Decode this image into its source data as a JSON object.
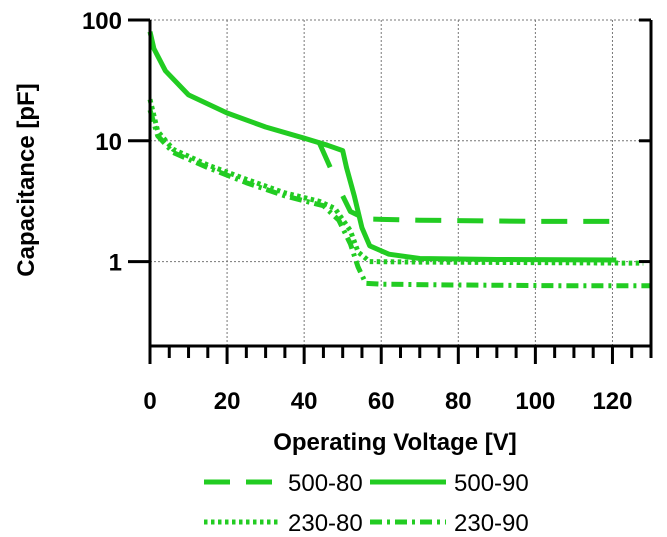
{
  "chart_data": {
    "type": "line",
    "title": "",
    "xlabel": "Operating Voltage [V]",
    "ylabel": "Capacitance [pF]",
    "xlim": [
      0,
      130
    ],
    "ylim": [
      0.2,
      100
    ],
    "yscale": "log",
    "grid": true,
    "x_ticks": [
      0,
      20,
      40,
      60,
      80,
      100,
      120
    ],
    "x_tick_labels": [
      "0",
      "20",
      "40",
      "60",
      "80",
      "100",
      "120"
    ],
    "y_ticks": [
      1,
      10,
      100
    ],
    "y_tick_labels": [
      "1",
      "10",
      "100"
    ],
    "legend_position": "bottom",
    "line_color": "#22cc22",
    "series": [
      {
        "name": "500-80",
        "style": "dashed",
        "segments": [
          [
            [
              44,
              9.5
            ],
            [
              47,
              5.8
            ]
          ],
          [
            [
              50,
              3.5
            ],
            [
              52,
              2.6
            ],
            [
              56,
              2.25
            ],
            [
              70,
              2.2
            ],
            [
              100,
              2.15
            ],
            [
              122,
              2.15
            ]
          ]
        ]
      },
      {
        "name": "500-90",
        "style": "solid",
        "segments": [
          [
            [
              0,
              80
            ],
            [
              1,
              58
            ],
            [
              4,
              38
            ],
            [
              10,
              24
            ],
            [
              20,
              17
            ],
            [
              30,
              13
            ],
            [
              40,
              10.5
            ],
            [
              46,
              9.2
            ],
            [
              50,
              8.3
            ],
            [
              51,
              6
            ],
            [
              53,
              3.5
            ],
            [
              55,
              1.9
            ],
            [
              57,
              1.35
            ],
            [
              62,
              1.15
            ],
            [
              70,
              1.06
            ],
            [
              90,
              1.04
            ],
            [
              121,
              1.03
            ]
          ]
        ]
      },
      {
        "name": "230-80",
        "style": "dotted",
        "segments": [
          [
            [
              0,
              22
            ],
            [
              2,
              12
            ],
            [
              6,
              8.5
            ],
            [
              15,
              6.3
            ],
            [
              25,
              4.8
            ],
            [
              35,
              3.7
            ],
            [
              44,
              3.15
            ],
            [
              48,
              2.75
            ],
            [
              52,
              1.8
            ],
            [
              54,
              1.2
            ],
            [
              57,
              1.0
            ],
            [
              70,
              0.99
            ],
            [
              100,
              0.98
            ],
            [
              128,
              0.97
            ]
          ]
        ]
      },
      {
        "name": "230-90",
        "style": "dashdot",
        "segments": [
          [
            [
              0,
              18
            ],
            [
              2,
              11
            ],
            [
              6,
              8
            ],
            [
              15,
              6
            ],
            [
              25,
              4.5
            ],
            [
              35,
              3.5
            ],
            [
              45,
              2.9
            ],
            [
              49,
              2.2
            ],
            [
              52,
              1.4
            ],
            [
              54,
              0.9
            ],
            [
              56,
              0.66
            ],
            [
              60,
              0.65
            ],
            [
              80,
              0.64
            ],
            [
              110,
              0.63
            ],
            [
              130,
              0.63
            ]
          ]
        ]
      }
    ]
  }
}
